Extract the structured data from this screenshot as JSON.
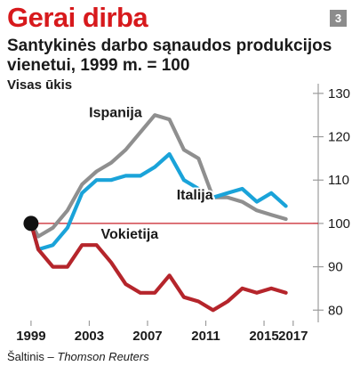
{
  "header": {
    "title": "Gerai dirba",
    "badge": "3",
    "subtitle": "Santykinės darbo sąnaudos produkcijos vienetui, 1999 m. = 100"
  },
  "source": {
    "prefix": "Šaltinis – ",
    "name": "Thomson Reuters"
  },
  "colors": {
    "title": "#d7191c",
    "spain": "#8f8f8f",
    "italy": "#1aa3d9",
    "germany": "#b5252b",
    "baseline": "#c8202a",
    "grid": "#9c9c9c",
    "marker": "#111111"
  },
  "chart_data": {
    "type": "line",
    "title": "Santykinės darbo sąnaudos produkcijos vienetui, 1999 m. = 100",
    "ylabel": "Visas ūkis",
    "xlabel": "",
    "xlim": [
      1998.7,
      2017.5
    ],
    "ylim": [
      78,
      131
    ],
    "x_ticks": [
      1999,
      2003,
      2007,
      2011,
      2015,
      2017
    ],
    "y_ticks": [
      80,
      90,
      100,
      110,
      120,
      130
    ],
    "baseline": 100,
    "grid": false,
    "y_axis_side": "right",
    "series": [
      {
        "name": "Ispanija",
        "color_key": "spain",
        "points": [
          [
            1999,
            100
          ],
          [
            1999.5,
            97
          ],
          [
            2000.5,
            99
          ],
          [
            2001.5,
            103
          ],
          [
            2002.5,
            109
          ],
          [
            2003.5,
            112
          ],
          [
            2004.5,
            114
          ],
          [
            2005.5,
            117
          ],
          [
            2006.5,
            121
          ],
          [
            2007.5,
            125
          ],
          [
            2008.5,
            124
          ],
          [
            2009.5,
            117
          ],
          [
            2010.5,
            115
          ],
          [
            2011.5,
            106
          ],
          [
            2012.5,
            106
          ],
          [
            2013.5,
            105
          ],
          [
            2014.5,
            103
          ],
          [
            2015.5,
            102
          ],
          [
            2016.5,
            101
          ]
        ]
      },
      {
        "name": "Italija",
        "color_key": "italy",
        "points": [
          [
            1999,
            100
          ],
          [
            1999.5,
            94
          ],
          [
            2000.5,
            95
          ],
          [
            2001.5,
            99
          ],
          [
            2002.5,
            107
          ],
          [
            2003.5,
            110
          ],
          [
            2004.5,
            110
          ],
          [
            2005.5,
            111
          ],
          [
            2006.5,
            111
          ],
          [
            2007.5,
            113
          ],
          [
            2008.5,
            116
          ],
          [
            2009.5,
            110
          ],
          [
            2010.5,
            108
          ],
          [
            2011.5,
            106
          ],
          [
            2012.5,
            107
          ],
          [
            2013.5,
            108
          ],
          [
            2014.5,
            105
          ],
          [
            2015.5,
            107
          ],
          [
            2016.5,
            104
          ]
        ]
      },
      {
        "name": "Vokietija",
        "color_key": "germany",
        "points": [
          [
            1999,
            100
          ],
          [
            1999.5,
            94
          ],
          [
            2000.5,
            90
          ],
          [
            2001.5,
            90
          ],
          [
            2002.5,
            95
          ],
          [
            2003.5,
            95
          ],
          [
            2004.5,
            91
          ],
          [
            2005.5,
            86
          ],
          [
            2006.5,
            84
          ],
          [
            2007.5,
            84
          ],
          [
            2008.5,
            88
          ],
          [
            2009.5,
            83
          ],
          [
            2010.5,
            82
          ],
          [
            2011.5,
            80
          ],
          [
            2012.5,
            82
          ],
          [
            2013.5,
            85
          ],
          [
            2014.5,
            84
          ],
          [
            2015.5,
            85
          ],
          [
            2016.5,
            84
          ]
        ]
      }
    ]
  }
}
